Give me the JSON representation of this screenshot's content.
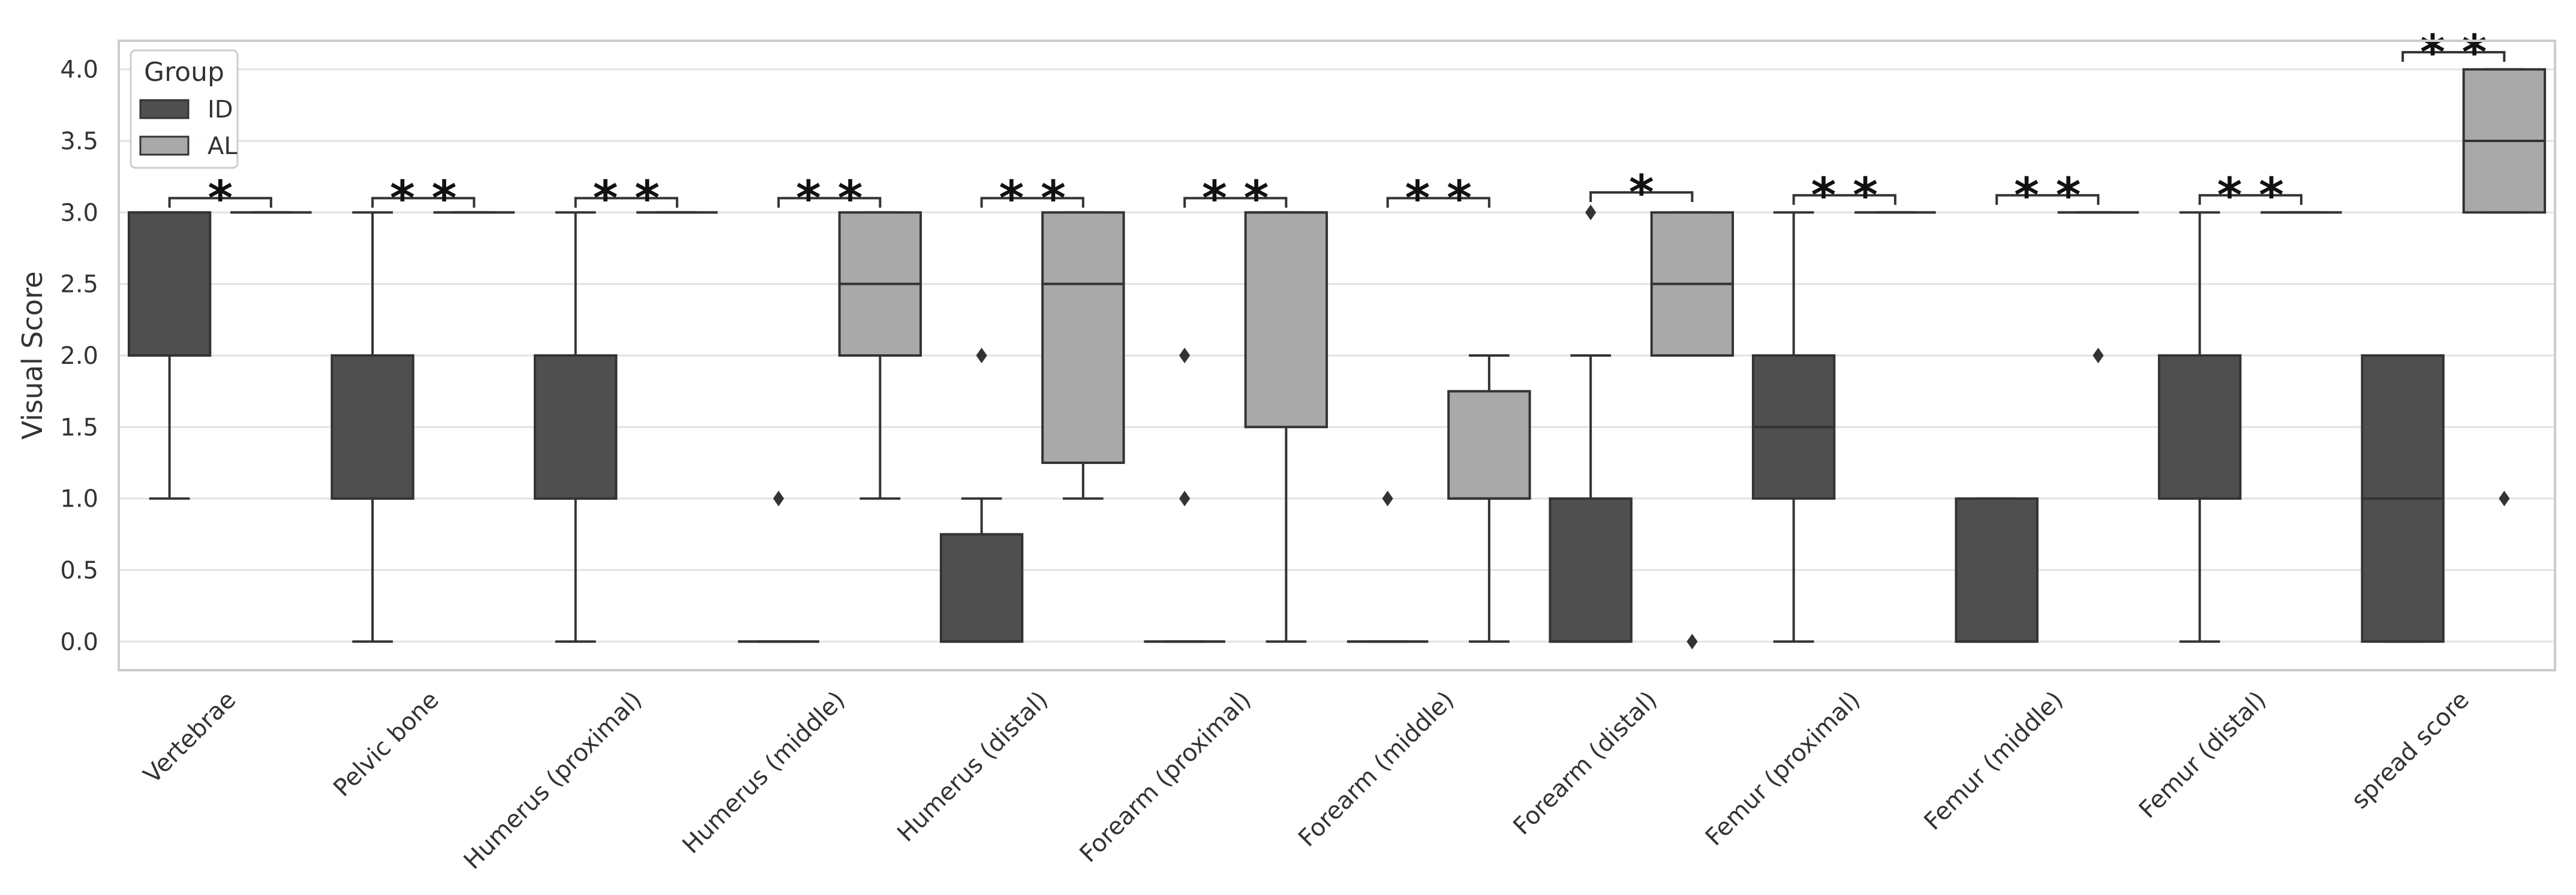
{
  "chart_data": {
    "type": "box",
    "ylabel": "Visual Score",
    "xlabel": "",
    "ylim": [
      -0.2,
      4.2
    ],
    "yticks": [
      "0.0",
      "0.5",
      "1.0",
      "1.5",
      "2.0",
      "2.5",
      "3.0",
      "3.5",
      "4.0"
    ],
    "grid": true,
    "legend": {
      "title": "Group",
      "position": "top-left",
      "entries": [
        "ID",
        "AL"
      ]
    },
    "colors": {
      "ID": "#4f4f4f",
      "AL": "#a9a9a9",
      "edge": "#333333",
      "grid": "#e2e2e2",
      "frame": "#cccccc"
    },
    "categories": [
      "Vertebrae",
      "Pelvic bone",
      "Humerus (proximal)",
      "Humerus (middle)",
      "Humerus (distal)",
      "Forearm (proximal)",
      "Forearm (middle)",
      "Forearm (distal)",
      "Femur (proximal)",
      "Femur (middle)",
      "Femur (distal)",
      "spread score"
    ],
    "series": [
      {
        "name": "ID",
        "boxes": [
          {
            "whisker_low": 1,
            "q1": 2,
            "median": 3,
            "q3": 3,
            "whisker_high": 3,
            "outliers": []
          },
          {
            "whisker_low": 0,
            "q1": 1,
            "median": 1,
            "q3": 2,
            "whisker_high": 3,
            "outliers": []
          },
          {
            "whisker_low": 0,
            "q1": 1,
            "median": 1,
            "q3": 2,
            "whisker_high": 3,
            "outliers": []
          },
          {
            "whisker_low": 0,
            "q1": 0,
            "median": 0,
            "q3": 0,
            "whisker_high": 0,
            "outliers": [
              1
            ]
          },
          {
            "whisker_low": 0,
            "q1": 0,
            "median": 0,
            "q3": 0.75,
            "whisker_high": 1,
            "outliers": [
              2
            ]
          },
          {
            "whisker_low": 0,
            "q1": 0,
            "median": 0,
            "q3": 0,
            "whisker_high": 0,
            "outliers": [
              1,
              2
            ]
          },
          {
            "whisker_low": 0,
            "q1": 0,
            "median": 0,
            "q3": 0,
            "whisker_high": 0,
            "outliers": [
              1
            ]
          },
          {
            "whisker_low": 0,
            "q1": 0,
            "median": 0,
            "q3": 1,
            "whisker_high": 2,
            "outliers": [
              3
            ]
          },
          {
            "whisker_low": 0,
            "q1": 1,
            "median": 1.5,
            "q3": 2,
            "whisker_high": 3,
            "outliers": []
          },
          {
            "whisker_low": 0,
            "q1": 0,
            "median": 0,
            "q3": 1,
            "whisker_high": 1,
            "outliers": []
          },
          {
            "whisker_low": 0,
            "q1": 1,
            "median": 1,
            "q3": 2,
            "whisker_high": 3,
            "outliers": []
          },
          {
            "whisker_low": 0,
            "q1": 0,
            "median": 1,
            "q3": 2,
            "whisker_high": 2,
            "outliers": []
          }
        ]
      },
      {
        "name": "AL",
        "boxes": [
          {
            "whisker_low": 3,
            "q1": 3,
            "median": 3,
            "q3": 3,
            "whisker_high": 3,
            "outliers": []
          },
          {
            "whisker_low": 3,
            "q1": 3,
            "median": 3,
            "q3": 3,
            "whisker_high": 3,
            "outliers": []
          },
          {
            "whisker_low": 3,
            "q1": 3,
            "median": 3,
            "q3": 3,
            "whisker_high": 3,
            "outliers": []
          },
          {
            "whisker_low": 1,
            "q1": 2,
            "median": 2.5,
            "q3": 3,
            "whisker_high": 3,
            "outliers": []
          },
          {
            "whisker_low": 1,
            "q1": 1.25,
            "median": 2.5,
            "q3": 3,
            "whisker_high": 3,
            "outliers": []
          },
          {
            "whisker_low": 0,
            "q1": 1.5,
            "median": 3,
            "q3": 3,
            "whisker_high": 3,
            "outliers": []
          },
          {
            "whisker_low": 0,
            "q1": 1,
            "median": 1,
            "q3": 1.75,
            "whisker_high": 2,
            "outliers": []
          },
          {
            "whisker_low": 2,
            "q1": 2,
            "median": 2.5,
            "q3": 3,
            "whisker_high": 3,
            "outliers": [
              0
            ]
          },
          {
            "whisker_low": 3,
            "q1": 3,
            "median": 3,
            "q3": 3,
            "whisker_high": 3,
            "outliers": []
          },
          {
            "whisker_low": 3,
            "q1": 3,
            "median": 3,
            "q3": 3,
            "whisker_high": 3,
            "outliers": [
              2
            ]
          },
          {
            "whisker_low": 3,
            "q1": 3,
            "median": 3,
            "q3": 3,
            "whisker_high": 3,
            "outliers": []
          },
          {
            "whisker_low": 3,
            "q1": 3,
            "median": 3.5,
            "q3": 4,
            "whisker_high": 4,
            "outliers": [
              1
            ]
          }
        ]
      }
    ],
    "annotations": [
      {
        "category": 0,
        "bracket_y": 3.1,
        "text": "*"
      },
      {
        "category": 1,
        "bracket_y": 3.1,
        "text": "* *"
      },
      {
        "category": 2,
        "bracket_y": 3.1,
        "text": "* *"
      },
      {
        "category": 3,
        "bracket_y": 3.1,
        "text": "* *"
      },
      {
        "category": 4,
        "bracket_y": 3.1,
        "text": "* *"
      },
      {
        "category": 5,
        "bracket_y": 3.1,
        "text": "* *"
      },
      {
        "category": 6,
        "bracket_y": 3.1,
        "text": "* *"
      },
      {
        "category": 7,
        "bracket_y": 3.14,
        "text": "*"
      },
      {
        "category": 8,
        "bracket_y": 3.12,
        "text": "* *"
      },
      {
        "category": 9,
        "bracket_y": 3.12,
        "text": "* *"
      },
      {
        "category": 10,
        "bracket_y": 3.12,
        "text": "* *"
      },
      {
        "category": 11,
        "bracket_y": 4.12,
        "text": "* *"
      }
    ]
  }
}
